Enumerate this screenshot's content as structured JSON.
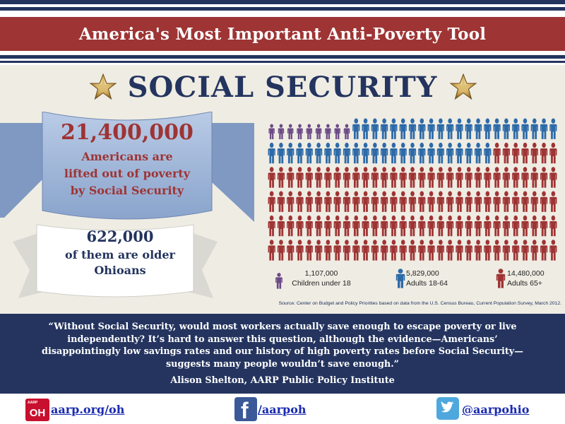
{
  "banner": {
    "title": "America's Most Important Anti-Poverty Tool"
  },
  "headline": "SOCIAL SECURITY",
  "stat_total": {
    "number": "21,400,000",
    "line1": "Americans are",
    "line2": "lifted out of poverty",
    "line3": "by Social Security"
  },
  "stat_ohio": {
    "number": "622,000",
    "line1": "of them are older",
    "line2": "Ohioans"
  },
  "pictogram": {
    "total_icons": 186,
    "counts": {
      "children": 9,
      "adults": 46,
      "seniors": 131
    },
    "colors": {
      "children": "#6b4a86",
      "adults": "#2d6aa8",
      "seniors": "#9e3434"
    }
  },
  "legend": [
    {
      "number": "1,107,000",
      "label": "Children under 18",
      "color": "#6b4a86"
    },
    {
      "number": "5,829,000",
      "label": "Adults 18-64",
      "color": "#2d6aa8"
    },
    {
      "number": "14,480,000",
      "label": "Adults 65+",
      "color": "#9e3434"
    }
  ],
  "source": "Source: Center on Budget and Policy Priorities based on data from the U.S. Census Bureau, Current Population Survey, March 2012.",
  "quote": {
    "line1": "“Without Social Security, would most workers actually save enough to escape poverty or live",
    "line2": "independently? It’s hard to answer this question, although the evidence—Americans’",
    "line3": "disappointingly low savings rates and our history of high poverty rates before Social Security—",
    "line4": "suggests many people wouldn’t save enough.”",
    "author": "Alison Shelton, AARP Public Policy Institute"
  },
  "footer": {
    "aarp_logo_text": "OH",
    "aarp_logo_tag": "AARP",
    "aarp_link": "aarp.org/oh",
    "facebook_link": "/aarpoh",
    "twitter_link": "@aarpohio"
  },
  "theme": {
    "navy": "#24345f",
    "red": "#9e3434",
    "panel": "#efece3",
    "ribbon_blue": "#9db4d6"
  }
}
